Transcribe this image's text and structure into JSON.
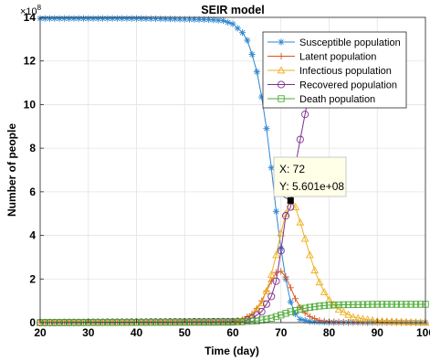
{
  "chart_data": {
    "type": "line",
    "title": "SEIR model",
    "xlabel": "Time (day)",
    "ylabel": "Number of people",
    "xlim": [
      20,
      100
    ],
    "ylim": [
      0,
      14
    ],
    "y_exponent_label": "×10^8",
    "xticks": [
      20,
      30,
      40,
      50,
      60,
      70,
      80,
      90,
      100
    ],
    "yticks": [
      0,
      2,
      4,
      6,
      8,
      10,
      12,
      14
    ],
    "grid": true,
    "legend_position": "top-right",
    "series": [
      {
        "name": "Susceptible population",
        "color": "#2E86D0",
        "marker": "asterisk",
        "x": [
          20,
          40,
          55,
          58,
          60,
          62,
          63,
          64,
          65,
          66,
          67,
          68,
          69,
          70,
          71,
          72,
          73,
          74,
          76,
          80,
          100
        ],
        "y": [
          13.95,
          13.95,
          13.9,
          13.85,
          13.7,
          13.3,
          12.95,
          12.3,
          11.5,
          10.35,
          8.9,
          7.1,
          5.1,
          3.4,
          2.0,
          0.95,
          0.4,
          0.15,
          0.05,
          0.01,
          0.0
        ]
      },
      {
        "name": "Latent population",
        "color": "#D9541E",
        "marker": "plus",
        "x": [
          20,
          58,
          60,
          62,
          64,
          65,
          66,
          67,
          68,
          69,
          70,
          71,
          72,
          73,
          74,
          75,
          76,
          78,
          80,
          85,
          100
        ],
        "y": [
          0.0,
          0.02,
          0.05,
          0.15,
          0.4,
          0.65,
          1.0,
          1.45,
          1.9,
          2.3,
          2.35,
          2.1,
          1.6,
          1.1,
          0.7,
          0.45,
          0.28,
          0.1,
          0.04,
          0.01,
          0.0
        ]
      },
      {
        "name": "Infectious population",
        "color": "#EDB120",
        "marker": "triangle",
        "x": [
          20,
          60,
          62,
          64,
          66,
          67,
          68,
          69,
          70,
          71,
          72,
          73,
          74,
          75,
          76,
          77,
          78,
          79,
          80,
          82,
          85,
          90,
          100
        ],
        "y": [
          0.0,
          0.04,
          0.12,
          0.35,
          0.9,
          1.45,
          2.2,
          3.1,
          4.1,
          5.0,
          5.601,
          5.3,
          4.6,
          3.85,
          3.1,
          2.4,
          1.85,
          1.4,
          1.05,
          0.6,
          0.25,
          0.07,
          0.0
        ]
      },
      {
        "name": "Recovered population",
        "color": "#7E2F8E",
        "marker": "circle",
        "x": [
          20,
          62,
          64,
          66,
          68,
          69,
          70,
          71,
          72,
          73,
          74,
          75,
          76,
          77,
          78,
          79,
          80,
          82
        ],
        "y": [
          0.0,
          0.05,
          0.2,
          0.5,
          1.2,
          1.9,
          3.3,
          4.9,
          5.3,
          7.2,
          8.4,
          9.55,
          10.8,
          11.9,
          12.6,
          12.9,
          13.05,
          13.1
        ]
      },
      {
        "name": "Death population",
        "color": "#4DAA36",
        "marker": "square",
        "x": [
          20,
          60,
          65,
          68,
          70,
          72,
          74,
          76,
          78,
          80,
          83,
          86,
          90,
          100
        ],
        "y": [
          0.0,
          0.02,
          0.08,
          0.2,
          0.35,
          0.5,
          0.62,
          0.7,
          0.76,
          0.8,
          0.82,
          0.83,
          0.84,
          0.84
        ]
      }
    ],
    "datatip": {
      "x_label": "X: 72",
      "y_label": "Y: 5.601e+08",
      "x": 72,
      "y": 5.601
    }
  }
}
